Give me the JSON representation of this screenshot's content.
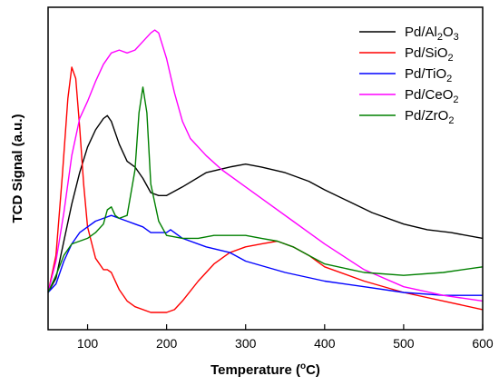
{
  "chart_data": {
    "type": "line",
    "title": "",
    "xlabel": "Temperature (°C)",
    "ylabel": "TCD Signal (a.u.)",
    "xlim": [
      50,
      600
    ],
    "ylim": [
      0,
      1
    ],
    "x_ticks": [
      100,
      200,
      300,
      400,
      500,
      600
    ],
    "y_ticks_labeled": false,
    "grid": false,
    "legend_position": "top-right",
    "series": [
      {
        "name": "Pd/Al2O3",
        "name_main": "Pd/Al",
        "name_sub1": "2",
        "name_mid": "O",
        "name_sub2": "3",
        "color": "#000000",
        "points": [
          [
            50,
            0.07
          ],
          [
            60,
            0.12
          ],
          [
            70,
            0.25
          ],
          [
            80,
            0.38
          ],
          [
            90,
            0.49
          ],
          [
            100,
            0.58
          ],
          [
            110,
            0.64
          ],
          [
            120,
            0.68
          ],
          [
            125,
            0.69
          ],
          [
            130,
            0.67
          ],
          [
            140,
            0.59
          ],
          [
            150,
            0.53
          ],
          [
            160,
            0.51
          ],
          [
            170,
            0.47
          ],
          [
            180,
            0.42
          ],
          [
            190,
            0.41
          ],
          [
            200,
            0.41
          ],
          [
            220,
            0.44
          ],
          [
            250,
            0.49
          ],
          [
            280,
            0.51
          ],
          [
            300,
            0.52
          ],
          [
            320,
            0.51
          ],
          [
            350,
            0.49
          ],
          [
            380,
            0.46
          ],
          [
            400,
            0.43
          ],
          [
            430,
            0.39
          ],
          [
            460,
            0.35
          ],
          [
            500,
            0.31
          ],
          [
            530,
            0.29
          ],
          [
            560,
            0.28
          ],
          [
            600,
            0.26
          ]
        ]
      },
      {
        "name": "Pd/SiO2",
        "name_main": "Pd/SiO",
        "name_sub1": "2",
        "name_mid": "",
        "name_sub2": "",
        "color": "#ff0000",
        "points": [
          [
            50,
            0.07
          ],
          [
            60,
            0.2
          ],
          [
            68,
            0.48
          ],
          [
            75,
            0.75
          ],
          [
            80,
            0.86
          ],
          [
            85,
            0.82
          ],
          [
            90,
            0.65
          ],
          [
            95,
            0.45
          ],
          [
            100,
            0.3
          ],
          [
            110,
            0.19
          ],
          [
            120,
            0.15
          ],
          [
            125,
            0.15
          ],
          [
            130,
            0.14
          ],
          [
            140,
            0.08
          ],
          [
            150,
            0.04
          ],
          [
            160,
            0.02
          ],
          [
            180,
            0.0
          ],
          [
            200,
            0.0
          ],
          [
            210,
            0.01
          ],
          [
            220,
            0.04
          ],
          [
            240,
            0.11
          ],
          [
            260,
            0.17
          ],
          [
            280,
            0.21
          ],
          [
            300,
            0.23
          ],
          [
            320,
            0.24
          ],
          [
            340,
            0.25
          ],
          [
            360,
            0.23
          ],
          [
            380,
            0.2
          ],
          [
            400,
            0.16
          ],
          [
            450,
            0.11
          ],
          [
            500,
            0.07
          ],
          [
            550,
            0.04
          ],
          [
            600,
            0.01
          ]
        ]
      },
      {
        "name": "Pd/TiO2",
        "name_main": "Pd/TiO",
        "name_sub1": "2",
        "name_mid": "",
        "name_sub2": "",
        "color": "#0000ff",
        "points": [
          [
            50,
            0.07
          ],
          [
            60,
            0.1
          ],
          [
            70,
            0.18
          ],
          [
            80,
            0.24
          ],
          [
            90,
            0.28
          ],
          [
            100,
            0.3
          ],
          [
            110,
            0.32
          ],
          [
            120,
            0.33
          ],
          [
            130,
            0.34
          ],
          [
            140,
            0.33
          ],
          [
            150,
            0.32
          ],
          [
            160,
            0.31
          ],
          [
            170,
            0.3
          ],
          [
            180,
            0.28
          ],
          [
            190,
            0.28
          ],
          [
            200,
            0.28
          ],
          [
            205,
            0.29
          ],
          [
            210,
            0.28
          ],
          [
            220,
            0.26
          ],
          [
            250,
            0.23
          ],
          [
            280,
            0.21
          ],
          [
            300,
            0.18
          ],
          [
            350,
            0.14
          ],
          [
            400,
            0.11
          ],
          [
            450,
            0.09
          ],
          [
            500,
            0.07
          ],
          [
            550,
            0.06
          ],
          [
            600,
            0.06
          ]
        ]
      },
      {
        "name": "Pd/CeO2",
        "name_main": "Pd/CeO",
        "name_sub1": "2",
        "name_mid": "",
        "name_sub2": "",
        "color": "#ff00ff",
        "points": [
          [
            50,
            0.07
          ],
          [
            60,
            0.18
          ],
          [
            70,
            0.35
          ],
          [
            80,
            0.55
          ],
          [
            90,
            0.68
          ],
          [
            100,
            0.74
          ],
          [
            110,
            0.81
          ],
          [
            120,
            0.87
          ],
          [
            130,
            0.91
          ],
          [
            140,
            0.92
          ],
          [
            150,
            0.91
          ],
          [
            160,
            0.92
          ],
          [
            170,
            0.95
          ],
          [
            180,
            0.98
          ],
          [
            185,
            0.99
          ],
          [
            190,
            0.98
          ],
          [
            200,
            0.89
          ],
          [
            210,
            0.77
          ],
          [
            220,
            0.67
          ],
          [
            230,
            0.61
          ],
          [
            250,
            0.55
          ],
          [
            270,
            0.5
          ],
          [
            300,
            0.44
          ],
          [
            330,
            0.38
          ],
          [
            360,
            0.32
          ],
          [
            400,
            0.24
          ],
          [
            450,
            0.15
          ],
          [
            500,
            0.09
          ],
          [
            550,
            0.06
          ],
          [
            600,
            0.04
          ]
        ]
      },
      {
        "name": "Pd/ZrO2",
        "name_main": "Pd/ZrO",
        "name_sub1": "2",
        "name_mid": "",
        "name_sub2": "",
        "color": "#008000",
        "points": [
          [
            50,
            0.07
          ],
          [
            60,
            0.13
          ],
          [
            70,
            0.2
          ],
          [
            80,
            0.24
          ],
          [
            90,
            0.25
          ],
          [
            100,
            0.26
          ],
          [
            110,
            0.28
          ],
          [
            120,
            0.31
          ],
          [
            125,
            0.36
          ],
          [
            130,
            0.37
          ],
          [
            135,
            0.34
          ],
          [
            140,
            0.33
          ],
          [
            150,
            0.34
          ],
          [
            160,
            0.5
          ],
          [
            165,
            0.7
          ],
          [
            170,
            0.79
          ],
          [
            175,
            0.7
          ],
          [
            180,
            0.45
          ],
          [
            190,
            0.32
          ],
          [
            200,
            0.27
          ],
          [
            220,
            0.26
          ],
          [
            240,
            0.26
          ],
          [
            260,
            0.27
          ],
          [
            280,
            0.27
          ],
          [
            300,
            0.27
          ],
          [
            320,
            0.26
          ],
          [
            340,
            0.25
          ],
          [
            360,
            0.23
          ],
          [
            380,
            0.2
          ],
          [
            400,
            0.17
          ],
          [
            450,
            0.14
          ],
          [
            500,
            0.13
          ],
          [
            550,
            0.14
          ],
          [
            600,
            0.16
          ]
        ]
      }
    ]
  }
}
